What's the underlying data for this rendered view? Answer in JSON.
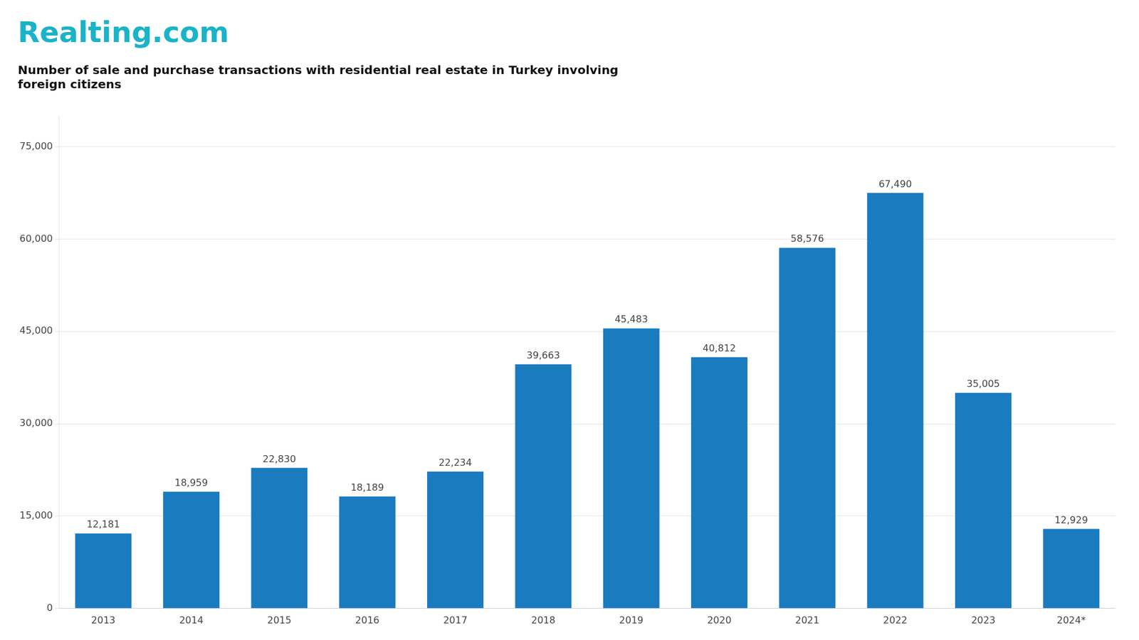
{
  "chart_data": {
    "type": "bar",
    "title": "Realting.com",
    "subtitle": [
      "Number of sale and purchase transactions with residential real estate in Turkey involving",
      "foreign citizens"
    ],
    "categories": [
      "2013",
      "2014",
      "2015",
      "2016",
      "2017",
      "2018",
      "2019",
      "2020",
      "2021",
      "2022",
      "2023",
      "2024*"
    ],
    "values": [
      12181,
      18959,
      22830,
      18189,
      22234,
      39663,
      45483,
      40812,
      58576,
      67490,
      35005,
      12929
    ],
    "value_labels": [
      "12,181",
      "18,959",
      "22,830",
      "18,189",
      "22,234",
      "39,663",
      "45,483",
      "40,812",
      "58,576",
      "67,490",
      "35,005",
      "12,929"
    ],
    "data_labels": true,
    "color": "#1a7bbf",
    "ylim": [
      0,
      80000
    ],
    "yticks": [
      0,
      {
        "value": 15000,
        "label": "15,000"
      },
      {
        "value": 30000,
        "label": "30,000"
      },
      {
        "value": 45000,
        "label": "45,000"
      },
      {
        "value": 60000,
        "label": "60,000"
      },
      {
        "value": 75000,
        "label": "75,000"
      }
    ],
    "grid": true
  }
}
